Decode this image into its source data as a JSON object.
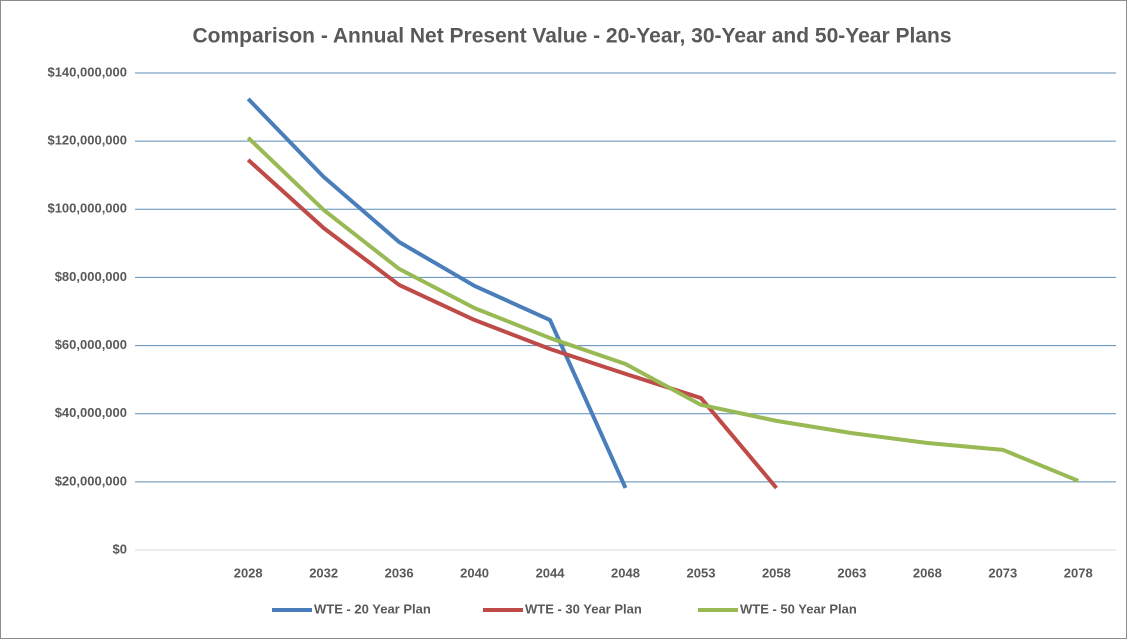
{
  "chart_data": {
    "type": "line",
    "title": "Comparison  - Annual Net Present Value - 20-Year, 30-Year and 50-Year Plans",
    "categories": [
      null,
      "2028",
      "2032",
      "2036",
      "2040",
      "2044",
      "2048",
      "2053",
      "2058",
      "2063",
      "2068",
      "2073",
      "2078"
    ],
    "series": [
      {
        "name": "WTE - 20 Year Plan",
        "color": "#4a7ebb",
        "values": [
          null,
          132400000,
          109500000,
          90400000,
          77500000,
          67500000,
          18200000,
          null,
          null,
          null,
          null,
          null,
          null
        ]
      },
      {
        "name": "WTE - 30 Year Plan",
        "color": "#be4b48",
        "values": [
          null,
          114500000,
          94500000,
          77800000,
          67500000,
          59000000,
          51700000,
          44600000,
          18200000,
          null,
          null,
          null,
          null
        ]
      },
      {
        "name": "WTE - 50 Year Plan",
        "color": "#98b954",
        "values": [
          null,
          121000000,
          99800000,
          82500000,
          71000000,
          62200000,
          54600000,
          42600000,
          37900000,
          34300000,
          31400000,
          29400000,
          20300000
        ]
      }
    ],
    "ylim": [
      0,
      140000000
    ],
    "yticks": [
      {
        "value": 0,
        "label": "$0"
      },
      {
        "value": 20000000,
        "label": "$20,000,000"
      },
      {
        "value": 40000000,
        "label": "$40,000,000"
      },
      {
        "value": 60000000,
        "label": "$60,000,000"
      },
      {
        "value": 80000000,
        "label": "$80,000,000"
      },
      {
        "value": 100000000,
        "label": "$100,000,000"
      },
      {
        "value": 120000000,
        "label": "$120,000,000"
      },
      {
        "value": 140000000,
        "label": "$140,000,000"
      }
    ],
    "grid": true,
    "legend": "bottom"
  }
}
